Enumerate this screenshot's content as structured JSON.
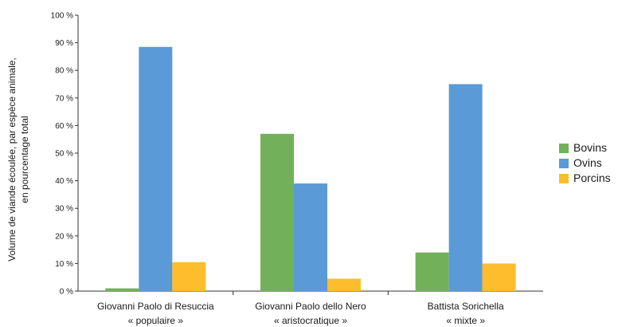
{
  "chart_data": {
    "type": "bar",
    "title": "",
    "ylabel": "Volume de viande écoulée, par espèce animale, en pourcentage total",
    "ylabel_lines": [
      "Volume de viande écoulée, par espèce animale,",
      "en pourcentage total"
    ],
    "ylim": [
      0,
      100
    ],
    "yticks": [
      0,
      10,
      20,
      30,
      40,
      50,
      60,
      70,
      80,
      90,
      100
    ],
    "ytick_labels": [
      "0 %",
      "10 %",
      "20 %",
      "30 %",
      "40 %",
      "50 %",
      "60 %",
      "70 %",
      "80 %",
      "90 %",
      "100 %"
    ],
    "grid": false,
    "legend_position": "right",
    "categories": [
      [
        "Giovanni Paolo di Resuccia",
        "« populaire »"
      ],
      [
        "Giovanni Paolo dello Nero",
        "« aristocratique »"
      ],
      [
        "Battista Sorichella",
        "« mixte »"
      ]
    ],
    "series": [
      {
        "name": "Bovins",
        "color": "#72b15a",
        "values": [
          1,
          57,
          14
        ]
      },
      {
        "name": "Ovins",
        "color": "#5a9ad6",
        "values": [
          88.5,
          39,
          75
        ]
      },
      {
        "name": "Porcins",
        "color": "#fdbd2c",
        "values": [
          10.5,
          4.5,
          10
        ]
      }
    ]
  }
}
